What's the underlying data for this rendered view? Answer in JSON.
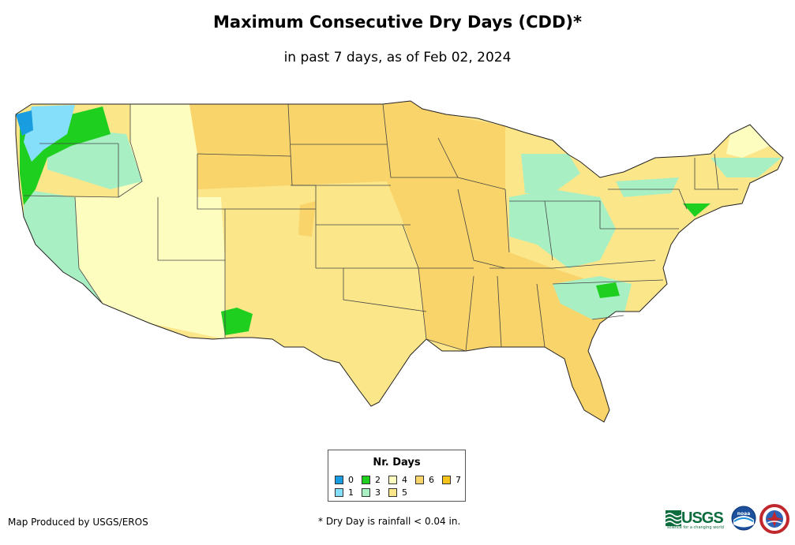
{
  "header": {
    "title": "Maximum Consecutive Dry Days (CDD)*",
    "subtitle": "in past 7 days, as of Feb 02, 2024"
  },
  "map": {
    "region": "Contiguous United States",
    "dominant_value_by_region": {
      "pacific_northwest_coast": 1,
      "western_washington_oregon": 2,
      "california": 3,
      "great_basin_southwest": 4,
      "northern_rockies_plains": 6,
      "midwest_south": 6,
      "southern_plains_texas": 5,
      "ohio_valley_appalachians": 3,
      "northeast": 5,
      "florida": 6
    }
  },
  "legend": {
    "title": "Nr. Days",
    "items": [
      {
        "label": "0",
        "color": "#1a9ce0"
      },
      {
        "label": "1",
        "color": "#86dffa"
      },
      {
        "label": "2",
        "color": "#1fcf1f"
      },
      {
        "label": "3",
        "color": "#a8f0c4"
      },
      {
        "label": "4",
        "color": "#fdfdc0"
      },
      {
        "label": "5",
        "color": "#fbe68a"
      },
      {
        "label": "6",
        "color": "#f9d46a"
      },
      {
        "label": "7",
        "color": "#f5c31a"
      }
    ]
  },
  "footer": {
    "credit": "Map Produced by USGS/EROS",
    "note": "* Dry Day is rainfall < 0.04 in."
  },
  "logos": {
    "usgs": "USGS",
    "usgs_tagline": "science for a changing world",
    "noaa": "noaa",
    "nws": "nws"
  }
}
